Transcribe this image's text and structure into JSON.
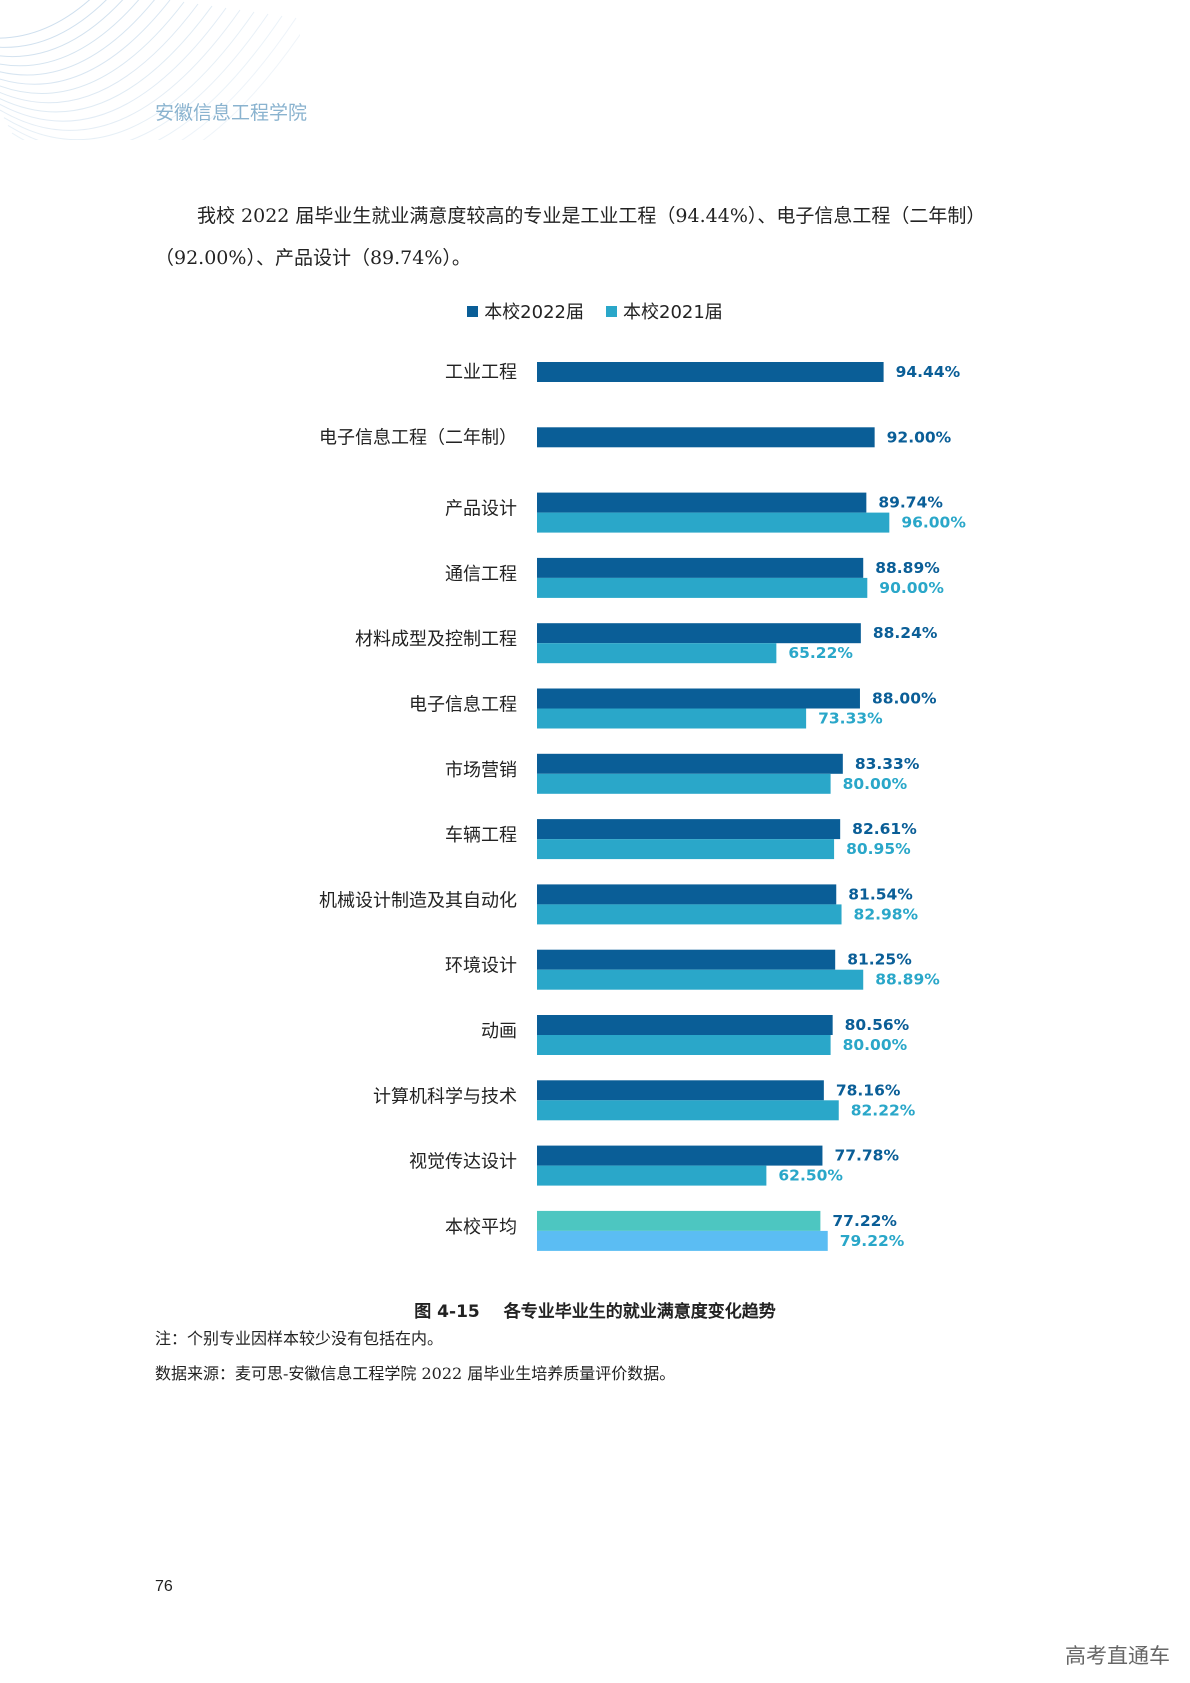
{
  "header": {
    "school": "安徽信息工程学院"
  },
  "intro": "我校 2022 届毕业生就业满意度较高的专业是工业工程（94.44%）、电子信息工程（二年制）（92.00%）、产品设计（89.74%）。",
  "colors": {
    "series2022": "#0a5e97",
    "series2021": "#2aa7c9",
    "avg2022": "#4dc6c1",
    "avg2021": "#5bbdf3"
  },
  "chart_data": {
    "type": "bar",
    "orientation": "horizontal",
    "legend_position": "top",
    "grid": false,
    "value_format": "percent",
    "categories": [
      "工业工程",
      "电子信息工程（二年制）",
      "产品设计",
      "通信工程",
      "材料成型及控制工程",
      "电子信息工程",
      "市场营销",
      "车辆工程",
      "机械设计制造及其自动化",
      "环境设计",
      "动画",
      "计算机科学与技术",
      "视觉传达设计",
      "本校平均"
    ],
    "series": [
      {
        "name": "本校2022届",
        "values": [
          94.44,
          92.0,
          89.74,
          88.89,
          88.24,
          88.0,
          83.33,
          82.61,
          81.54,
          81.25,
          80.56,
          78.16,
          77.78,
          77.22
        ],
        "labels": [
          "94.44%",
          "92.00%",
          "89.74%",
          "88.89%",
          "88.24%",
          "88.00%",
          "83.33%",
          "82.61%",
          "81.54%",
          "81.25%",
          "80.56%",
          "78.16%",
          "77.78%",
          "77.22%"
        ]
      },
      {
        "name": "本校2021届",
        "values": [
          null,
          null,
          96.0,
          90.0,
          65.22,
          73.33,
          80.0,
          80.95,
          82.98,
          88.89,
          80.0,
          82.22,
          62.5,
          79.22
        ],
        "labels": [
          "",
          "",
          "96.00%",
          "90.00%",
          "65.22%",
          "73.33%",
          "80.00%",
          "80.95%",
          "82.98%",
          "88.89%",
          "80.00%",
          "82.22%",
          "62.50%",
          "79.22%"
        ]
      }
    ],
    "xlim": [
      0,
      100
    ]
  },
  "figure": {
    "number": "图 4-15",
    "title": "各专业毕业生的就业满意度变化趋势"
  },
  "notes": [
    "注：个别专业因样本较少没有包括在内。",
    "数据来源：麦可思-安徽信息工程学院 2022 届毕业生培养质量评价数据。"
  ],
  "page_number": "76",
  "watermark": "高考直通车"
}
